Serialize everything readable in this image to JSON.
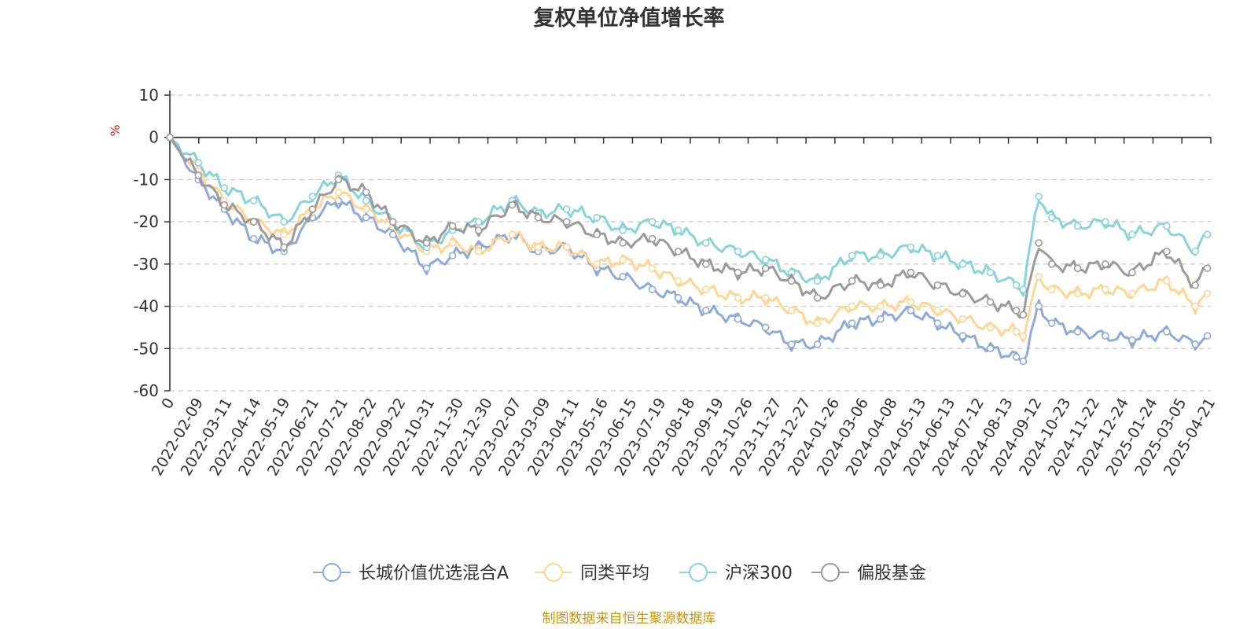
{
  "chart_data": {
    "type": "line",
    "title": "复权单位净值增长率",
    "ylabel": "%",
    "ylim": [
      -60,
      10
    ],
    "yticks": [
      "10",
      "0",
      "-10",
      "-20",
      "-30",
      "-40",
      "-50",
      "-60"
    ],
    "x_start": "2022-01-07",
    "x_end": "2025-04-25",
    "x_first_label": "0",
    "x_labels": [
      "2022-02-09",
      "2022-03-11",
      "2022-04-14",
      "2022-05-19",
      "2022-06-21",
      "2022-07-21",
      "2022-08-22",
      "2022-09-22",
      "2022-10-31",
      "2022-11-30",
      "2022-12-30",
      "2023-02-07",
      "2023-03-09",
      "2023-04-11",
      "2023-05-16",
      "2023-06-15",
      "2023-07-19",
      "2023-08-18",
      "2023-09-19",
      "2023-10-26",
      "2023-11-27",
      "2023-12-27",
      "2024-01-26",
      "2024-03-06",
      "2024-04-08",
      "2024-05-13",
      "2024-06-13",
      "2024-07-12",
      "2024-08-13",
      "2024-09-12",
      "2024-10-23",
      "2024-11-22",
      "2024-12-24",
      "2025-01-24",
      "2025-03-05",
      "2025-04-21"
    ],
    "grid": "horizontal dashed",
    "legend_position": "bottom-center",
    "series": [
      {
        "name": "长城价值优选混合A",
        "color": "#8eaadb",
        "x": [
          "2022-01-07",
          "2022-02-09",
          "2022-03-11",
          "2022-04-14",
          "2022-05-19",
          "2022-06-21",
          "2022-07-21",
          "2022-08-22",
          "2022-09-22",
          "2022-10-31",
          "2022-11-30",
          "2022-12-30",
          "2023-02-07",
          "2023-03-09",
          "2023-04-11",
          "2023-05-16",
          "2023-06-15",
          "2023-07-19",
          "2023-08-18",
          "2023-09-19",
          "2023-10-26",
          "2023-11-27",
          "2023-12-27",
          "2024-01-26",
          "2024-03-06",
          "2024-04-08",
          "2024-05-13",
          "2024-06-13",
          "2024-07-12",
          "2024-08-13",
          "2024-09-12",
          "2024-09-20",
          "2024-10-08",
          "2024-10-23",
          "2024-11-22",
          "2024-12-24",
          "2025-01-24",
          "2025-03-05",
          "2025-04-07",
          "2025-04-21"
        ],
        "y": [
          0,
          -10,
          -17,
          -24,
          -27,
          -19,
          -15,
          -19,
          -23,
          -31,
          -28,
          -26,
          -23,
          -27,
          -26,
          -31,
          -33,
          -36,
          -38,
          -41,
          -43,
          -45,
          -49,
          -49,
          -44,
          -43,
          -41,
          -44,
          -47,
          -50,
          -52,
          -53,
          -40,
          -44,
          -46,
          -47,
          -48,
          -46,
          -49,
          -47
        ]
      },
      {
        "name": "同类平均",
        "color": "#ffd591",
        "x": [
          "2022-01-07",
          "2022-02-09",
          "2022-03-11",
          "2022-04-14",
          "2022-05-19",
          "2022-06-21",
          "2022-07-21",
          "2022-08-22",
          "2022-09-22",
          "2022-10-31",
          "2022-11-30",
          "2022-12-30",
          "2023-02-07",
          "2023-03-09",
          "2023-04-11",
          "2023-05-16",
          "2023-06-15",
          "2023-07-19",
          "2023-08-18",
          "2023-09-19",
          "2023-10-26",
          "2023-11-27",
          "2023-12-27",
          "2024-01-26",
          "2024-03-06",
          "2024-04-08",
          "2024-05-13",
          "2024-06-13",
          "2024-07-12",
          "2024-08-13",
          "2024-09-12",
          "2024-09-20",
          "2024-10-08",
          "2024-10-23",
          "2024-11-22",
          "2024-12-24",
          "2025-01-24",
          "2025-03-05",
          "2025-04-07",
          "2025-04-21"
        ],
        "y": [
          0,
          -8,
          -15,
          -20,
          -23,
          -17,
          -13,
          -17,
          -21,
          -27,
          -25,
          -27,
          -23,
          -26,
          -26,
          -30,
          -29,
          -31,
          -34,
          -36,
          -38,
          -38,
          -41,
          -44,
          -40,
          -40,
          -39,
          -41,
          -43,
          -45,
          -46,
          -47,
          -33,
          -36,
          -37,
          -36,
          -37,
          -34,
          -40,
          -37
        ]
      },
      {
        "name": "沪深300",
        "color": "#87d3d8",
        "x": [
          "2022-01-07",
          "2022-02-09",
          "2022-03-11",
          "2022-04-14",
          "2022-05-19",
          "2022-06-21",
          "2022-07-21",
          "2022-08-22",
          "2022-09-22",
          "2022-10-31",
          "2022-11-30",
          "2022-12-30",
          "2023-02-07",
          "2023-03-09",
          "2023-04-11",
          "2023-05-16",
          "2023-06-15",
          "2023-07-19",
          "2023-08-18",
          "2023-09-19",
          "2023-10-26",
          "2023-11-27",
          "2023-12-27",
          "2024-01-26",
          "2024-03-06",
          "2024-04-08",
          "2024-05-13",
          "2024-06-13",
          "2024-07-12",
          "2024-08-13",
          "2024-09-12",
          "2024-09-20",
          "2024-10-08",
          "2024-10-23",
          "2024-11-22",
          "2024-12-24",
          "2025-01-24",
          "2025-03-05",
          "2025-04-07",
          "2025-04-21"
        ],
        "y": [
          0,
          -6,
          -12,
          -15,
          -20,
          -14,
          -9,
          -15,
          -20,
          -26,
          -22,
          -20,
          -15,
          -18,
          -17,
          -19,
          -22,
          -20,
          -22,
          -25,
          -27,
          -29,
          -32,
          -34,
          -28,
          -28,
          -26,
          -28,
          -30,
          -32,
          -35,
          -36,
          -14,
          -19,
          -21,
          -20,
          -23,
          -21,
          -27,
          -23
        ]
      },
      {
        "name": "偏股基金",
        "color": "#9b9b9b",
        "x": [
          "2022-01-07",
          "2022-02-09",
          "2022-03-11",
          "2022-04-14",
          "2022-05-19",
          "2022-06-21",
          "2022-07-21",
          "2022-08-22",
          "2022-09-22",
          "2022-10-31",
          "2022-11-30",
          "2022-12-30",
          "2023-02-07",
          "2023-03-09",
          "2023-04-11",
          "2023-05-16",
          "2023-06-15",
          "2023-07-19",
          "2023-08-18",
          "2023-09-19",
          "2023-10-26",
          "2023-11-27",
          "2023-12-27",
          "2024-01-26",
          "2024-03-06",
          "2024-04-08",
          "2024-05-13",
          "2024-06-13",
          "2024-07-12",
          "2024-08-13",
          "2024-09-12",
          "2024-09-20",
          "2024-10-08",
          "2024-10-23",
          "2024-11-22",
          "2024-12-24",
          "2025-01-24",
          "2025-03-05",
          "2025-04-07",
          "2025-04-21"
        ],
        "y": [
          0,
          -9,
          -16,
          -20,
          -26,
          -17,
          -10,
          -13,
          -20,
          -25,
          -21,
          -22,
          -16,
          -19,
          -20,
          -23,
          -25,
          -24,
          -27,
          -30,
          -32,
          -31,
          -34,
          -38,
          -34,
          -35,
          -32,
          -35,
          -37,
          -39,
          -41,
          -42,
          -25,
          -30,
          -31,
          -30,
          -32,
          -27,
          -35,
          -31
        ]
      }
    ]
  },
  "source": "制图数据来自恒生聚源数据库"
}
